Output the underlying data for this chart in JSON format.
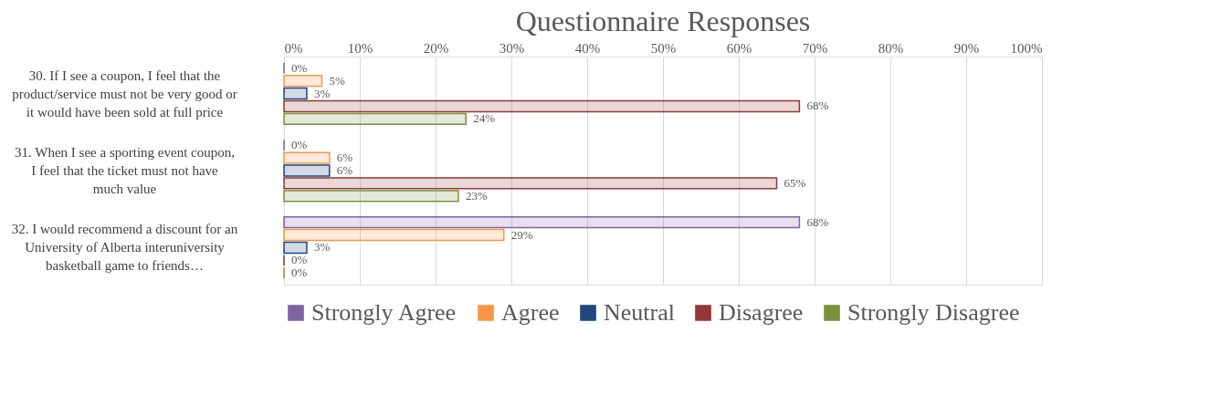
{
  "chart_data": {
    "type": "bar",
    "orientation": "horizontal",
    "title": "Questionnaire Responses",
    "categories": [
      "30.  If I see a coupon, I feel that the product/service must not be very good or it would have been sold at full price",
      "31.  When I see a sporting event coupon, I feel that the ticket must not have much value",
      "32.  I would recommend a discount for an University of Alberta interuniversity basketball game to friends…"
    ],
    "series": [
      {
        "name": "Strongly Agree",
        "color": "#8064a2",
        "values": [
          0,
          0,
          68
        ],
        "value_labels": [
          "0%",
          "0%",
          "68%"
        ]
      },
      {
        "name": "Agree",
        "color": "#f79646",
        "values": [
          5,
          6,
          29
        ],
        "value_labels": [
          "5%",
          "6%",
          "29%"
        ]
      },
      {
        "name": "Neutral",
        "color": "#1f497d",
        "values": [
          3,
          6,
          3
        ],
        "value_labels": [
          "3%",
          "6%",
          "3%"
        ]
      },
      {
        "name": "Disagree",
        "color": "#953735",
        "values": [
          68,
          65,
          0
        ],
        "value_labels": [
          "68%",
          "65%",
          "0%"
        ]
      },
      {
        "name": "Strongly Disagree",
        "color": "#77933c",
        "values": [
          24,
          23,
          0
        ],
        "value_labels": [
          "24%",
          "23%",
          "0%"
        ]
      }
    ],
    "xlim": [
      0,
      100
    ],
    "xticks": [
      {
        "value": 0,
        "label": "0%"
      },
      {
        "value": 10,
        "label": "10%"
      },
      {
        "value": 20,
        "label": "20%"
      },
      {
        "value": 30,
        "label": "30%"
      },
      {
        "value": 40,
        "label": "40%"
      },
      {
        "value": 50,
        "label": "50%"
      },
      {
        "value": 60,
        "label": "60%"
      },
      {
        "value": 70,
        "label": "70%"
      },
      {
        "value": 80,
        "label": "80%"
      },
      {
        "value": 90,
        "label": "90%"
      },
      {
        "value": 100,
        "label": "100%"
      }
    ],
    "grid": "x",
    "legend": "bottom"
  }
}
